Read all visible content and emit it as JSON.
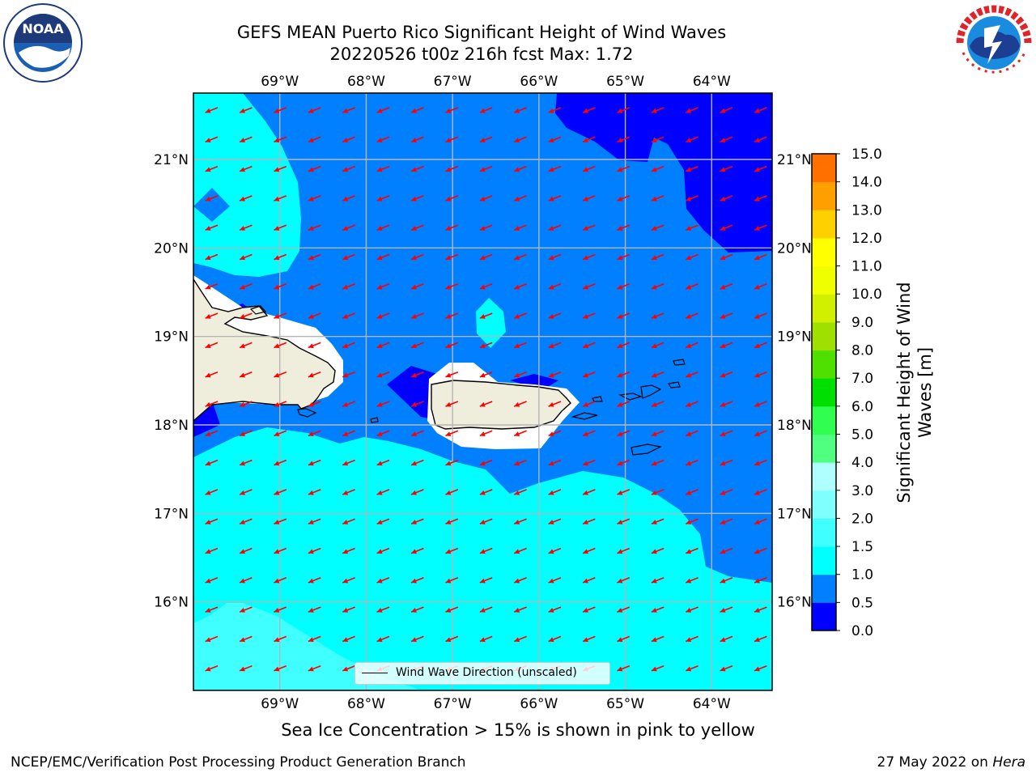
{
  "title": {
    "line1": "GEFS MEAN Puerto Rico Significant Height of Wind Waves",
    "line2": "20220526 t00z 216h fcst   Max: 1.72"
  },
  "map": {
    "lon_labels": [
      "69°W",
      "68°W",
      "67°W",
      "66°W",
      "65°W",
      "64°W"
    ],
    "lat_labels": [
      "21°N",
      "20°N",
      "19°N",
      "18°N",
      "17°N",
      "16°N"
    ],
    "lon_range": [
      -70.0,
      -63.3
    ],
    "lat_range": [
      15.0,
      21.75
    ],
    "arrow_color": "#ff0000",
    "land_color": "#efeddc",
    "legend_label": "Wind Wave Direction (unscaled)"
  },
  "colorbar": {
    "title": "Significant Height of Wind Waves [m]",
    "title_line1": "Significant Height of Wind",
    "title_line2": "Waves [m]",
    "ticks": [
      "15.0",
      "14.0",
      "13.0",
      "12.0",
      "11.0",
      "10.0",
      "9.0",
      "8.0",
      "7.0",
      "6.0",
      "5.0",
      "4.0",
      "3.0",
      "2.0",
      "1.5",
      "1.0",
      "0.5",
      "0.0"
    ],
    "colors": [
      "#0000ff",
      "#0080ff",
      "#00ffff",
      "#40ffff",
      "#80ffff",
      "#b0ffff",
      "#50ff80",
      "#30ff50",
      "#00e000",
      "#50e000",
      "#a0e000",
      "#d0f000",
      "#f0ff00",
      "#ffff00",
      "#ffd000",
      "#ffa000",
      "#ff7000",
      "#ff3000",
      "#ff0000"
    ]
  },
  "ice_note": "Sea Ice Concentration > 15% is shown in pink to yellow",
  "footer": {
    "left": "NCEP/EMC/Verification Post Processing Product Generation Branch",
    "right_prefix": "27 May 2022 on ",
    "right_host": "Hera"
  },
  "logos": {
    "noaa": "NOAA",
    "nws": "NATIONAL WEATHER SERVICE"
  }
}
